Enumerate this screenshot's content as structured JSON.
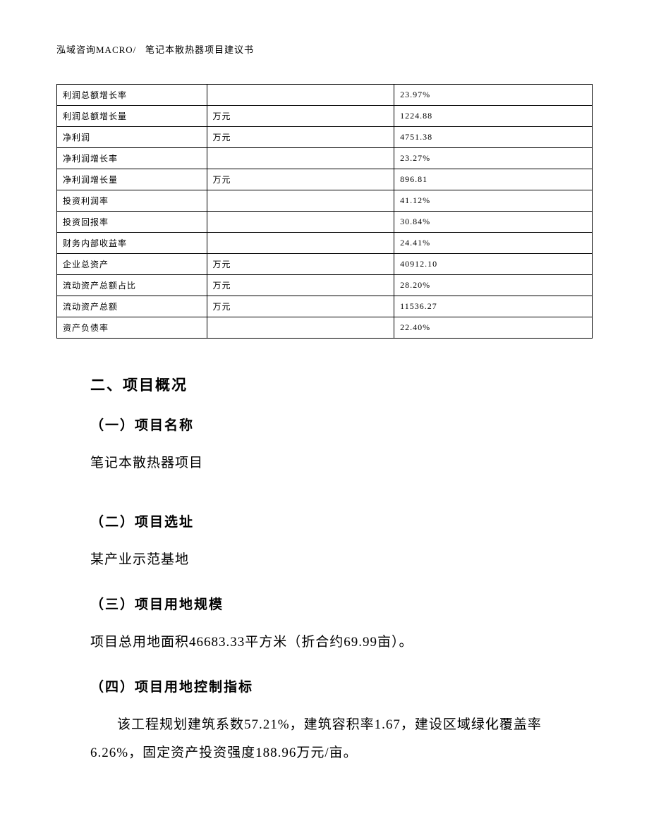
{
  "header": {
    "company": "泓域咨询MACRO/",
    "doc_title": "笔记本散热器项目建议书"
  },
  "table": {
    "rows": [
      {
        "label": "利润总额增长率",
        "unit": "",
        "value": "23.97%"
      },
      {
        "label": "利润总额增长量",
        "unit": "万元",
        "value": "1224.88"
      },
      {
        "label": "净利润",
        "unit": "万元",
        "value": "4751.38"
      },
      {
        "label": "净利润增长率",
        "unit": "",
        "value": "23.27%"
      },
      {
        "label": "净利润增长量",
        "unit": "万元",
        "value": "896.81"
      },
      {
        "label": "投资利润率",
        "unit": "",
        "value": "41.12%"
      },
      {
        "label": "投资回报率",
        "unit": "",
        "value": "30.84%"
      },
      {
        "label": "财务内部收益率",
        "unit": "",
        "value": "24.41%"
      },
      {
        "label": "企业总资产",
        "unit": "万元",
        "value": "40912.10"
      },
      {
        "label": "流动资产总额占比",
        "unit": "万元",
        "value": "28.20%"
      },
      {
        "label": "流动资产总额",
        "unit": "万元",
        "value": "11536.27"
      },
      {
        "label": "资产负债率",
        "unit": "",
        "value": "22.40%"
      }
    ]
  },
  "sections": {
    "main_title": "二、项目概况",
    "sub1": {
      "title": "（一）项目名称",
      "text": "笔记本散热器项目"
    },
    "sub2": {
      "title": "（二）项目选址",
      "text": "某产业示范基地"
    },
    "sub3": {
      "title": "（三）项目用地规模",
      "text": "项目总用地面积46683.33平方米（折合约69.99亩）。"
    },
    "sub4": {
      "title": "（四）项目用地控制指标",
      "text": "该工程规划建筑系数57.21%，建筑容积率1.67，建设区域绿化覆盖率6.26%，固定资产投资强度188.96万元/亩。"
    }
  }
}
